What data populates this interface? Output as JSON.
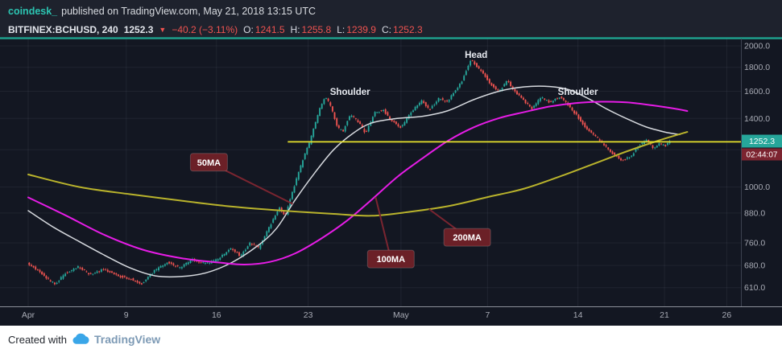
{
  "header": {
    "publisher": "coindesk_",
    "published_text": "published on TradingView.com, May 21, 2018 13:15 UTC",
    "symbol": "BITFINEX:BCHUSD, 240",
    "last_price": "1252.3",
    "change_icon": "▼",
    "change": "−40.2 (−3.11%)",
    "ohlc": [
      {
        "label": "O:",
        "value": "1241.5"
      },
      {
        "label": "H:",
        "value": "1255.8"
      },
      {
        "label": "L:",
        "value": "1239.9"
      },
      {
        "label": "C:",
        "value": "1252.3"
      }
    ]
  },
  "footer": {
    "created_with": "Created with",
    "brand": "TradingView"
  },
  "colors": {
    "up": "#26a69a",
    "down": "#ef5350",
    "top_line": "#20a08d",
    "grid": "rgba(151,164,192,0.09)",
    "axis_text": "#a8abb5",
    "axis_sep": "#3c4150",
    "time_sep": "#8d919b",
    "neckline": "#e7e22d",
    "badge_price_bg": "#26a69a",
    "badge_countdown_bg": "#7c2430",
    "badge_text": "#ffffff",
    "callout_bg": "#6b2027",
    "callout_line": "#7a2530",
    "callout_text": "#ffffff",
    "annotation_text": "#e6e9ef"
  },
  "chart_data": {
    "type": "candlestick",
    "symbol": "BITFINEX:BCHUSD",
    "interval_minutes": 240,
    "scale": "logarithmic",
    "current_price": 1252.3,
    "current_price_label": "1252.3",
    "countdown": "02:44:07",
    "ohlc_last": {
      "open": 1241.5,
      "high": 1255.8,
      "low": 1239.9,
      "close": 1252.3
    },
    "price_axis": {
      "ref_price": 2000,
      "labels": [
        {
          "text": "2000.0",
          "price": 2000
        },
        {
          "text": "1800.0",
          "price": 1800
        },
        {
          "text": "1600.0",
          "price": 1600
        },
        {
          "text": "1400.0",
          "price": 1400
        },
        {
          "text": "1000.0",
          "price": 1000
        },
        {
          "text": "880.0",
          "price": 880
        },
        {
          "text": "760.0",
          "price": 760
        },
        {
          "text": "680.0",
          "price": 680
        },
        {
          "text": "610.0",
          "price": 610
        }
      ],
      "grid_prices": [
        2000,
        1800,
        1600,
        1400,
        1200,
        1000,
        880,
        760,
        680,
        610
      ]
    },
    "time_axis": {
      "ticks": [
        {
          "text": "Apr",
          "day": 0
        },
        {
          "text": "9",
          "day": 7.7
        },
        {
          "text": "16",
          "day": 14.8
        },
        {
          "text": "23",
          "day": 22
        },
        {
          "text": "May",
          "day": 29.3
        },
        {
          "text": "7",
          "day": 36.1
        },
        {
          "text": "14",
          "day": 43.2
        },
        {
          "text": "21",
          "day": 50
        },
        {
          "text": "26",
          "day": 54.9
        }
      ]
    },
    "candle_step_days": 0.16667,
    "price_path": [
      [
        0,
        690
      ],
      [
        1.2,
        650
      ],
      [
        2.2,
        618
      ],
      [
        3,
        655
      ],
      [
        4,
        675
      ],
      [
        5,
        650
      ],
      [
        6,
        668
      ],
      [
        7,
        648
      ],
      [
        8,
        638
      ],
      [
        9,
        622
      ],
      [
        10,
        662
      ],
      [
        11,
        690
      ],
      [
        12,
        672
      ],
      [
        13,
        700
      ],
      [
        14,
        686
      ],
      [
        15,
        700
      ],
      [
        16,
        740
      ],
      [
        16.8,
        712
      ],
      [
        17.5,
        760
      ],
      [
        18.2,
        740
      ],
      [
        19,
        818
      ],
      [
        19.8,
        902
      ],
      [
        20.3,
        868
      ],
      [
        21,
        1005
      ],
      [
        21.7,
        1148
      ],
      [
        22.2,
        1245
      ],
      [
        23,
        1468
      ],
      [
        23.4,
        1558
      ],
      [
        23.8,
        1498
      ],
      [
        24.4,
        1338
      ],
      [
        24.8,
        1312
      ],
      [
        25.4,
        1428
      ],
      [
        26,
        1378
      ],
      [
        26.6,
        1302
      ],
      [
        27.3,
        1438
      ],
      [
        28,
        1458
      ],
      [
        28.6,
        1388
      ],
      [
        29.4,
        1338
      ],
      [
        30.2,
        1448
      ],
      [
        31,
        1528
      ],
      [
        31.6,
        1458
      ],
      [
        32.4,
        1548
      ],
      [
        33,
        1518
      ],
      [
        33.6,
        1598
      ],
      [
        34.2,
        1688
      ],
      [
        34.6,
        1798
      ],
      [
        34.9,
        1878
      ],
      [
        35.3,
        1808
      ],
      [
        35.9,
        1738
      ],
      [
        36.5,
        1648
      ],
      [
        37.1,
        1598
      ],
      [
        37.7,
        1688
      ],
      [
        38.3,
        1598
      ],
      [
        39,
        1528
      ],
      [
        39.7,
        1468
      ],
      [
        40.4,
        1558
      ],
      [
        41.1,
        1508
      ],
      [
        41.8,
        1558
      ],
      [
        42.5,
        1498
      ],
      [
        43.2,
        1418
      ],
      [
        43.9,
        1338
      ],
      [
        44.6,
        1288
      ],
      [
        45.3,
        1228
      ],
      [
        46,
        1178
      ],
      [
        46.8,
        1138
      ],
      [
        47.5,
        1168
      ],
      [
        48.1,
        1228
      ],
      [
        48.7,
        1258
      ],
      [
        49.2,
        1212
      ],
      [
        49.7,
        1238
      ],
      [
        50.1,
        1220
      ],
      [
        50.5,
        1252
      ]
    ],
    "ma_lines": [
      {
        "name": "50MA",
        "color": "#d6d9de",
        "width": 1.5,
        "points": [
          [
            0,
            890
          ],
          [
            2,
            820
          ],
          [
            4,
            765
          ],
          [
            6,
            715
          ],
          [
            8,
            672
          ],
          [
            10,
            646
          ],
          [
            12,
            644
          ],
          [
            14,
            656
          ],
          [
            16,
            690
          ],
          [
            18,
            748
          ],
          [
            19.5,
            815
          ],
          [
            21,
            940
          ],
          [
            22.5,
            1070
          ],
          [
            24,
            1200
          ],
          [
            25.5,
            1300
          ],
          [
            27,
            1370
          ],
          [
            29,
            1400
          ],
          [
            31,
            1415
          ],
          [
            33,
            1455
          ],
          [
            35,
            1535
          ],
          [
            37,
            1600
          ],
          [
            39,
            1635
          ],
          [
            41,
            1638
          ],
          [
            42.5,
            1612
          ],
          [
            44,
            1545
          ],
          [
            45.5,
            1465
          ],
          [
            47,
            1400
          ],
          [
            48.5,
            1345
          ],
          [
            50,
            1310
          ],
          [
            51.2,
            1293
          ]
        ]
      },
      {
        "name": "100MA",
        "color": "#e61ce6",
        "width": 2,
        "points": [
          [
            0,
            950
          ],
          [
            3,
            868
          ],
          [
            6,
            790
          ],
          [
            9,
            735
          ],
          [
            12,
            705
          ],
          [
            15,
            690
          ],
          [
            17,
            683
          ],
          [
            19,
            692
          ],
          [
            21,
            722
          ],
          [
            23,
            775
          ],
          [
            25,
            845
          ],
          [
            27,
            940
          ],
          [
            29,
            1050
          ],
          [
            31,
            1152
          ],
          [
            33,
            1255
          ],
          [
            35,
            1340
          ],
          [
            37,
            1402
          ],
          [
            39,
            1445
          ],
          [
            41,
            1485
          ],
          [
            43,
            1510
          ],
          [
            45,
            1520
          ],
          [
            47,
            1515
          ],
          [
            49,
            1494
          ],
          [
            51,
            1466
          ],
          [
            51.8,
            1452
          ]
        ]
      },
      {
        "name": "200MA",
        "color": "#b9b32c",
        "width": 2,
        "points": [
          [
            0,
            1063
          ],
          [
            4,
            1000
          ],
          [
            8,
            965
          ],
          [
            12,
            935
          ],
          [
            16,
            908
          ],
          [
            20,
            890
          ],
          [
            24,
            876
          ],
          [
            27,
            868
          ],
          [
            30,
            885
          ],
          [
            33,
            910
          ],
          [
            36,
            950
          ],
          [
            39,
            992
          ],
          [
            42,
            1058
          ],
          [
            44.5,
            1122
          ],
          [
            47,
            1190
          ],
          [
            49.5,
            1255
          ],
          [
            51.8,
            1310
          ]
        ]
      }
    ],
    "neckline": {
      "price": 1248,
      "from_day": 20.4
    },
    "annotations": [
      {
        "text": "Shoulder",
        "day": 25.3,
        "price": 1598
      },
      {
        "text": "Head",
        "day": 35.2,
        "price": 1915
      },
      {
        "text": "Shoulder",
        "day": 43.2,
        "price": 1598
      }
    ],
    "callouts": [
      {
        "label": "50MA",
        "box_day": 14.2,
        "box_price": 1129,
        "tip_day": 20.8,
        "tip_price": 920
      },
      {
        "label": "100MA",
        "box_day": 28.5,
        "box_price": 702,
        "tip_day": 27.3,
        "tip_price": 952
      },
      {
        "label": "200MA",
        "box_day": 34.5,
        "box_price": 781,
        "tip_day": 31.5,
        "tip_price": 897
      }
    ]
  }
}
